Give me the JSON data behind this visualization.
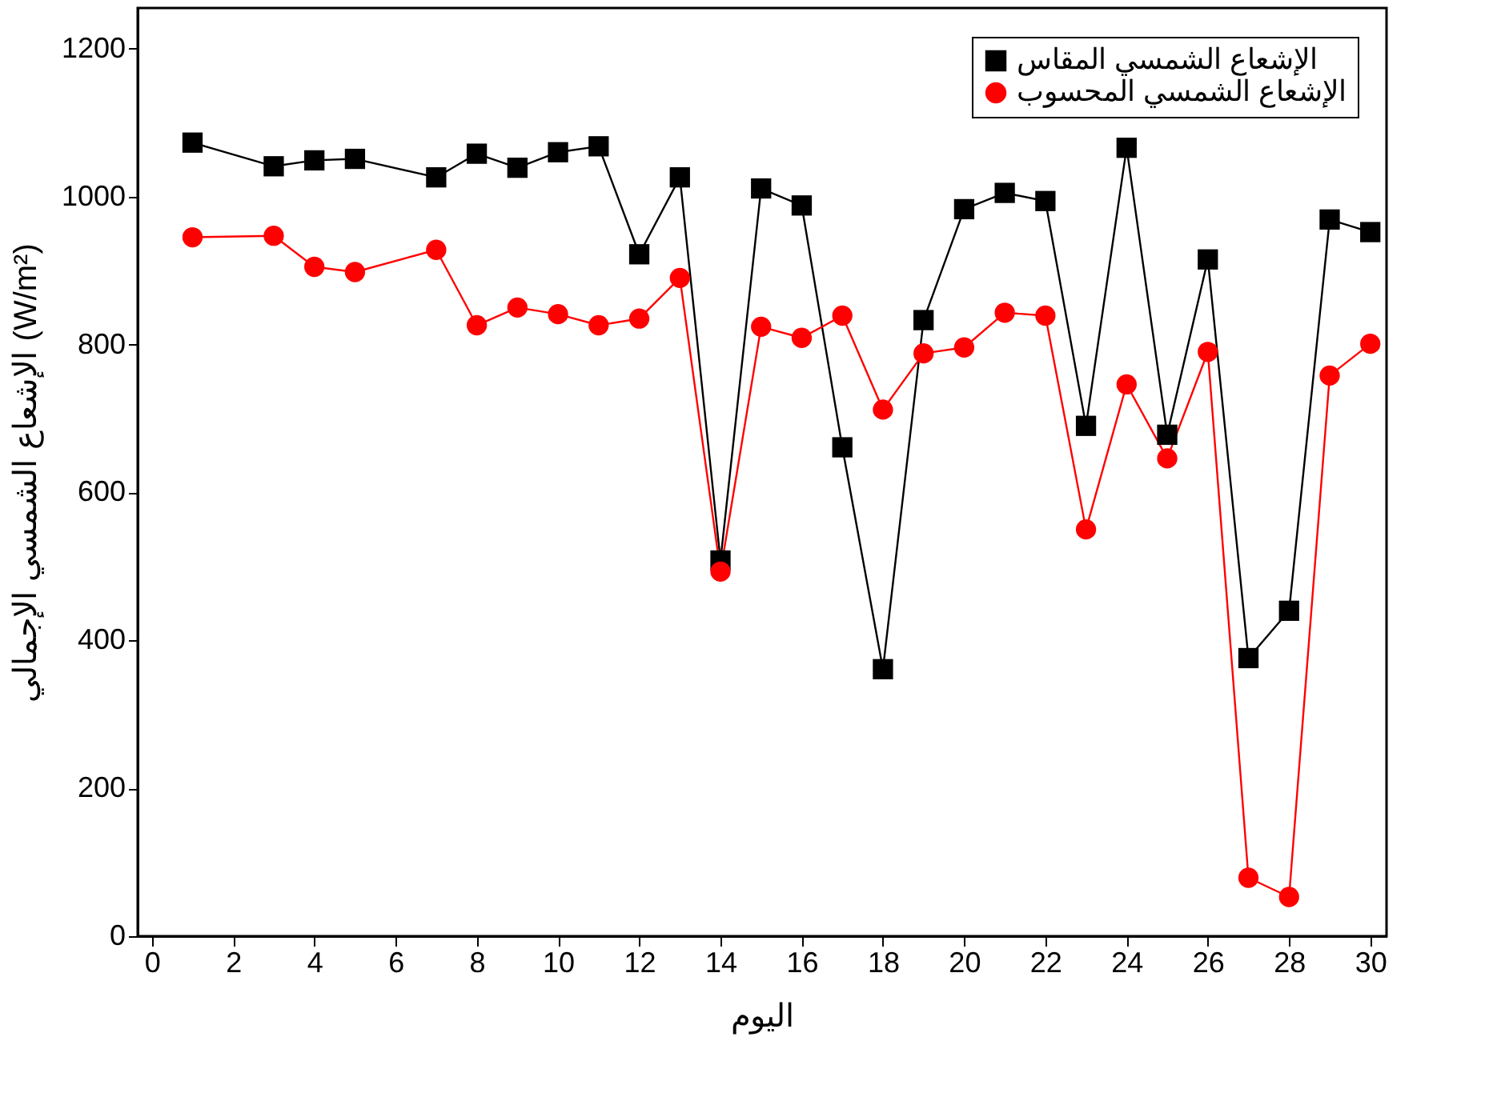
{
  "chart_data": {
    "type": "line",
    "xlabel": "اليوم",
    "ylabel": "الإشعاع الشمسي الإجمالي (W/m²)",
    "x": [
      1,
      3,
      4,
      5,
      7,
      8,
      9,
      10,
      11,
      12,
      13,
      14,
      15,
      16,
      17,
      18,
      19,
      20,
      21,
      22,
      23,
      24,
      25,
      26,
      27,
      28,
      29,
      30
    ],
    "series": [
      {
        "name": "الإشعاع الشمسي المقاس",
        "color": "#000000",
        "marker": "square",
        "values": [
          1073,
          1041,
          1049,
          1051,
          1026,
          1058,
          1039,
          1060,
          1068,
          922,
          1026,
          508,
          1011,
          988,
          661,
          361,
          833,
          983,
          1005,
          994,
          690,
          1066,
          678,
          915,
          376,
          440,
          969,
          952
        ]
      },
      {
        "name": "الإشعاع الشمسي المحسوب",
        "color": "#ff0000",
        "marker": "circle",
        "values": [
          945,
          947,
          905,
          898,
          928,
          826,
          850,
          841,
          826,
          835,
          890,
          493,
          824,
          809,
          839,
          712,
          788,
          796,
          843,
          839,
          550,
          746,
          646,
          790,
          79,
          53,
          758,
          801
        ]
      }
    ],
    "xlim": [
      -0.35,
      30.4
    ],
    "xticks": [
      0,
      2,
      4,
      6,
      8,
      10,
      12,
      14,
      16,
      18,
      20,
      22,
      24,
      26,
      28,
      30
    ],
    "ylim": [
      0,
      1255
    ],
    "yticks": [
      0,
      200,
      400,
      600,
      800,
      1000,
      1200
    ],
    "grid": false,
    "legend": "top right",
    "line_style": "solid"
  }
}
